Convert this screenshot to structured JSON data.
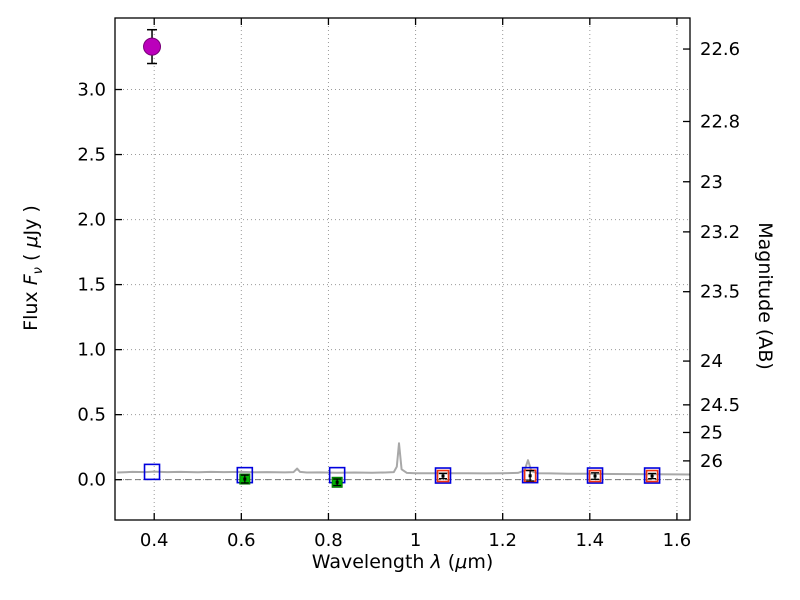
{
  "figure": {
    "xlabel": {
      "prefix": "Wavelength  ",
      "lambda": "λ",
      "open": " (",
      "mu": "μ",
      "close": "m)"
    },
    "ylabel_left": {
      "prefix": "Flux  ",
      "symbol": "F",
      "subscript": "ν",
      "open": "  ( ",
      "mu": "μ",
      "close": "Jy )"
    },
    "ylabel_right": "Magnitude (AB)"
  },
  "chart_data": {
    "type": "scatter",
    "title": "",
    "xlabel": "Wavelength λ (μm)",
    "ylabel": "Flux Fν ( μJy )",
    "ylabel_right": "Magnitude (AB)",
    "xlim": [
      0.31,
      1.63
    ],
    "ylim": [
      -0.31,
      3.55
    ],
    "grid": true,
    "grid_style": "dotted",
    "x_ticks": [
      0.4,
      0.6,
      0.8,
      1.0,
      1.2,
      1.4,
      1.6
    ],
    "x_tick_labels": [
      "0.4",
      "0.6",
      "0.8",
      "1",
      "1.2",
      "1.4",
      "1.6"
    ],
    "y_ticks": [
      0.0,
      0.5,
      1.0,
      1.5,
      2.0,
      2.5,
      3.0
    ],
    "y_tick_labels": [
      "0.0",
      "0.5",
      "1.0",
      "1.5",
      "2.0",
      "2.5",
      "3.0"
    ],
    "right_axis": {
      "label": "Magnitude (AB)",
      "tick_labels": [
        "22.6",
        "22.8",
        "23",
        "23.2",
        "23.5",
        "24",
        "24.5",
        "25",
        "26"
      ],
      "tick_mags": [
        22.6,
        22.8,
        23,
        23.2,
        23.5,
        24,
        24.5,
        25,
        26
      ]
    },
    "zero_line": 0.0,
    "series": [
      {
        "name": "gray-spectrum",
        "type": "line",
        "color": "#a8a8a8",
        "x": [
          0.315,
          0.35,
          0.38,
          0.4,
          0.43,
          0.46,
          0.5,
          0.53,
          0.56,
          0.6,
          0.63,
          0.66,
          0.7,
          0.72,
          0.728,
          0.735,
          0.75,
          0.78,
          0.82,
          0.86,
          0.9,
          0.93,
          0.95,
          0.957,
          0.962,
          0.968,
          0.98,
          1.0,
          1.04,
          1.08,
          1.12,
          1.16,
          1.2,
          1.235,
          1.25,
          1.258,
          1.266,
          1.28,
          1.31,
          1.35,
          1.4,
          1.45,
          1.5,
          1.55,
          1.6,
          1.63
        ],
        "y": [
          0.055,
          0.06,
          0.058,
          0.062,
          0.058,
          0.06,
          0.057,
          0.06,
          0.058,
          0.06,
          0.057,
          0.058,
          0.056,
          0.058,
          0.085,
          0.06,
          0.055,
          0.056,
          0.054,
          0.055,
          0.054,
          0.055,
          0.058,
          0.1,
          0.28,
          0.08,
          0.052,
          0.05,
          0.05,
          0.049,
          0.05,
          0.048,
          0.049,
          0.052,
          0.07,
          0.15,
          0.065,
          0.05,
          0.048,
          0.046,
          0.045,
          0.044,
          0.043,
          0.042,
          0.041,
          0.04
        ]
      },
      {
        "name": "blue-square-points",
        "type": "open-square",
        "color": "#0000dd",
        "size": 15,
        "points": [
          [
            0.395,
            0.06
          ],
          [
            0.608,
            0.035
          ],
          [
            0.82,
            0.035
          ],
          [
            1.063,
            0.032
          ],
          [
            1.263,
            0.035
          ],
          [
            1.412,
            0.032
          ],
          [
            1.543,
            0.032
          ]
        ]
      },
      {
        "name": "red-square-points",
        "type": "open-square",
        "color": "#ee3311",
        "size": 11,
        "points": [
          [
            1.063,
            0.028
          ],
          [
            1.263,
            0.03
          ],
          [
            1.412,
            0.028
          ],
          [
            1.543,
            0.028
          ]
        ]
      },
      {
        "name": "green-square-points",
        "type": "filled-square",
        "color": "#00b300",
        "edge_color": "#007700",
        "size": 10,
        "points": [
          [
            0.608,
            0.005
          ],
          [
            0.82,
            -0.02
          ]
        ]
      },
      {
        "name": "black-errorbar-points",
        "type": "errorbar",
        "color": "#000000",
        "cap_width": 4,
        "points": [
          [
            0.608,
            0.005
          ],
          [
            0.82,
            -0.02
          ],
          [
            1.063,
            0.028
          ],
          [
            1.263,
            0.03
          ],
          [
            1.412,
            0.028
          ],
          [
            1.543,
            0.028
          ]
        ],
        "yerr": [
          0.03,
          0.025,
          0.02,
          0.04,
          0.025,
          0.02
        ]
      },
      {
        "name": "magenta-circle-point",
        "type": "filled-circle",
        "color": "#bb00bb",
        "edge_color": "#7a007a",
        "errorbar_color": "#000000",
        "cap_width": 5,
        "size": 17,
        "points": [
          [
            0.395,
            3.33
          ]
        ],
        "yerr": [
          0.13
        ]
      }
    ]
  }
}
